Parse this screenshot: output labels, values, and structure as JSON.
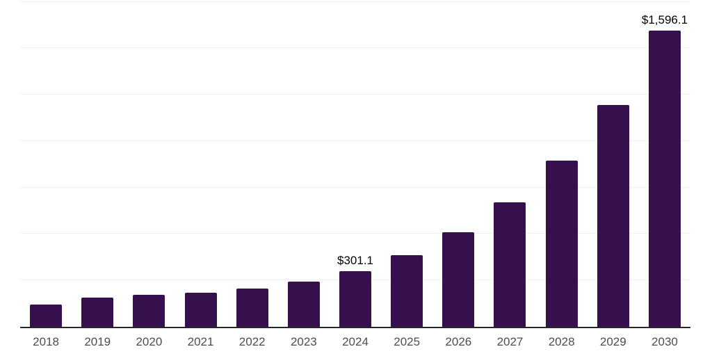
{
  "chart_data": {
    "type": "bar",
    "title": "",
    "subtitle": "",
    "xlabel": "",
    "ylabel": "",
    "legend_position": "none",
    "grid": true,
    "gridline_step": 250,
    "ylim": [
      0,
      1750
    ],
    "categories": [
      "2018",
      "2019",
      "2020",
      "2021",
      "2022",
      "2023",
      "2024",
      "2025",
      "2026",
      "2027",
      "2028",
      "2029",
      "2030"
    ],
    "values": [
      120.2,
      158.3,
      172.1,
      184.5,
      207.3,
      243.0,
      301.1,
      387.0,
      508.2,
      670.8,
      896.1,
      1194.3,
      1596.1
    ],
    "data_labels": [
      "",
      "",
      "",
      "",
      "",
      "",
      "$301.1",
      "",
      "",
      "",
      "",
      "",
      "$1,596.1"
    ],
    "colors": {
      "bar": "#36104d",
      "gridline": "#f0f0f0",
      "axis_line": "#262626",
      "tick_label": "#4d4d4d",
      "data_label": "#000000",
      "background": "#ffffff"
    }
  }
}
